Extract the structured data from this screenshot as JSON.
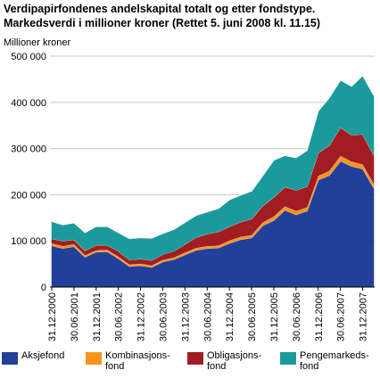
{
  "title_lines": [
    "Verdipapirfondenes andelskapital totalt og etter fondstype.",
    "Markedsverdi i millioner kroner (Rettet 5. juni 2008 kl. 11.15)"
  ],
  "chart_data": {
    "type": "area",
    "stacked": true,
    "title": "Verdipapirfondenes andelskapital totalt og etter fondstype. Markedsverdi i millioner kroner (Rettet 5. juni 2008 kl. 11.15)",
    "ylabel": "Millioner kroner",
    "xlabel": "",
    "ylim": [
      0,
      500000
    ],
    "yticks": [
      0,
      100000,
      200000,
      300000,
      400000,
      500000
    ],
    "ytick_labels": [
      "0",
      "100 000",
      "200 000",
      "300 000",
      "400 000",
      "500 000"
    ],
    "x_tick_labels": [
      "31.12.2000",
      "30.06.2001",
      "31.12.2001",
      "30.06.2002",
      "31.12.2002",
      "30.06.2003",
      "31.12.2003",
      "30.06.2004",
      "31.12.2004",
      "30.06.2005",
      "31.12.2005",
      "30.06.2006",
      "31.12.2006",
      "30.06.2007",
      "31.12.2007"
    ],
    "grid": "horizontal",
    "legend_position": "bottom",
    "series": [
      {
        "name": "Aksjefond",
        "color": "#22409a",
        "values": [
          90000,
          84000,
          88000,
          65000,
          76000,
          77000,
          62000,
          45000,
          47000,
          43000,
          55000,
          60000,
          70000,
          80000,
          84000,
          85000,
          95000,
          103000,
          107000,
          133000,
          145000,
          167000,
          157000,
          165000,
          232000,
          242000,
          273000,
          262000,
          256000,
          215000
        ]
      },
      {
        "name": "Kombinasjonsfond",
        "color": "#f7941d",
        "values": [
          5000,
          5000,
          5000,
          4000,
          4000,
          4000,
          4000,
          4000,
          4000,
          4000,
          4000,
          4000,
          5000,
          5000,
          5000,
          5000,
          6000,
          6000,
          6000,
          7000,
          8000,
          8000,
          8000,
          8000,
          9000,
          10000,
          11000,
          10000,
          10000,
          9000
        ]
      },
      {
        "name": "Obligasjonsfond",
        "color": "#a11d21",
        "values": [
          10000,
          11000,
          10000,
          10000,
          11000,
          10000,
          12000,
          10000,
          10000,
          11000,
          12000,
          14000,
          18000,
          23000,
          26000,
          30000,
          30000,
          32000,
          35000,
          36000,
          42000,
          42000,
          45000,
          45000,
          50000,
          55000,
          62000,
          58000,
          65000,
          62000
        ]
      },
      {
        "name": "Pengemarkedsfond",
        "color": "#1a9a9c",
        "values": [
          37000,
          35000,
          36000,
          39000,
          40000,
          40000,
          40000,
          46000,
          46000,
          48000,
          45000,
          47000,
          47000,
          47000,
          48000,
          50000,
          58000,
          58000,
          60000,
          65000,
          80000,
          68000,
          70000,
          78000,
          90000,
          103000,
          102000,
          105000,
          127000,
          129000
        ]
      }
    ]
  },
  "legend": [
    {
      "label": "Aksjefond",
      "color": "#22409a"
    },
    {
      "label": "Kombinasjons-\nfond",
      "color": "#f7941d"
    },
    {
      "label": "Obligasjons-\nfond",
      "color": "#a11d21"
    },
    {
      "label": "Pengemarkeds-\nfond",
      "color": "#1a9a9c"
    }
  ]
}
